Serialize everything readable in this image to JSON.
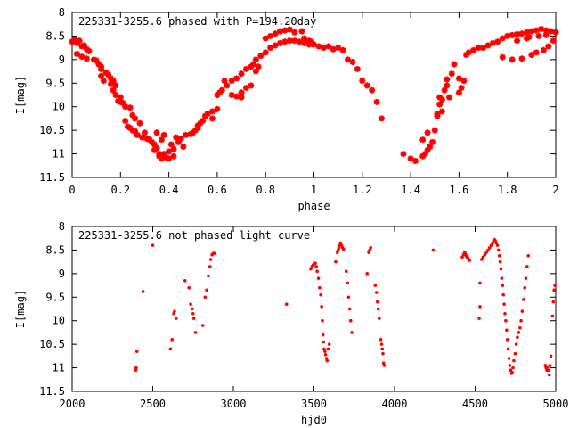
{
  "colors": {
    "points": "#ff0000",
    "axes": "#000000",
    "background": "#ffffff"
  },
  "chart_data": [
    {
      "type": "scatter",
      "title": "225331-3255.6 phased with P=194.20day",
      "xlabel": "phase",
      "ylabel": "I[mag]",
      "xlim": [
        0,
        2
      ],
      "ylim": [
        11.5,
        8
      ],
      "y_inverted": true,
      "grid": false,
      "marker": "plus",
      "xticks": [
        "0",
        "0.2",
        "0.4",
        "0.6",
        "0.8",
        "1",
        "1.2",
        "1.4",
        "1.6",
        "1.8",
        "2"
      ],
      "yticks": [
        "8",
        "8.5",
        "9",
        "9.5",
        "10",
        "10.5",
        "11",
        "11.5"
      ],
      "points": [
        [
          0.0,
          8.62
        ],
        [
          0.01,
          8.58
        ],
        [
          0.02,
          8.65
        ],
        [
          0.03,
          8.6
        ],
        [
          0.04,
          8.72
        ],
        [
          0.05,
          8.7
        ],
        [
          0.06,
          8.78
        ],
        [
          0.07,
          8.82
        ],
        [
          0.02,
          8.88
        ],
        [
          0.04,
          8.94
        ],
        [
          0.06,
          8.98
        ],
        [
          0.09,
          9.0
        ],
        [
          0.1,
          9.02
        ],
        [
          0.11,
          9.1
        ],
        [
          0.12,
          9.35
        ],
        [
          0.13,
          9.45
        ],
        [
          0.12,
          9.2
        ],
        [
          0.14,
          9.28
        ],
        [
          0.15,
          9.32
        ],
        [
          0.16,
          9.4
        ],
        [
          0.17,
          9.45
        ],
        [
          0.18,
          9.55
        ],
        [
          0.12,
          9.15
        ],
        [
          0.16,
          9.52
        ],
        [
          0.17,
          9.65
        ],
        [
          0.18,
          9.75
        ],
        [
          0.2,
          9.8
        ],
        [
          0.2,
          9.9
        ],
        [
          0.21,
          9.92
        ],
        [
          0.22,
          10.0
        ],
        [
          0.19,
          9.88
        ],
        [
          0.24,
          10.02
        ],
        [
          0.22,
          10.3
        ],
        [
          0.23,
          10.42
        ],
        [
          0.24,
          10.45
        ],
        [
          0.25,
          10.5
        ],
        [
          0.26,
          10.52
        ],
        [
          0.27,
          10.6
        ],
        [
          0.25,
          10.18
        ],
        [
          0.26,
          10.25
        ],
        [
          0.28,
          10.35
        ],
        [
          0.29,
          10.65
        ],
        [
          0.3,
          10.55
        ],
        [
          0.31,
          10.68
        ],
        [
          0.32,
          10.7
        ],
        [
          0.33,
          10.75
        ],
        [
          0.34,
          10.8
        ],
        [
          0.34,
          10.92
        ],
        [
          0.35,
          10.88
        ],
        [
          0.36,
          11.0
        ],
        [
          0.36,
          11.05
        ],
        [
          0.37,
          11.1
        ],
        [
          0.38,
          11.0
        ],
        [
          0.39,
          11.08
        ],
        [
          0.4,
          10.95
        ],
        [
          0.41,
          10.8
        ],
        [
          0.42,
          10.9
        ],
        [
          0.42,
          11.05
        ],
        [
          0.43,
          10.65
        ],
        [
          0.44,
          10.75
        ],
        [
          0.45,
          10.68
        ],
        [
          0.46,
          10.85
        ],
        [
          0.35,
          10.55
        ],
        [
          0.37,
          10.7
        ],
        [
          0.38,
          10.6
        ],
        [
          0.4,
          11.1
        ],
        [
          0.47,
          10.6
        ],
        [
          0.49,
          10.58
        ],
        [
          0.5,
          10.55
        ],
        [
          0.51,
          10.5
        ],
        [
          0.52,
          10.4
        ],
        [
          0.53,
          10.35
        ],
        [
          0.52,
          10.45
        ],
        [
          0.54,
          10.3
        ],
        [
          0.55,
          10.2
        ],
        [
          0.56,
          10.15
        ],
        [
          0.58,
          10.1
        ],
        [
          0.6,
          10.05
        ],
        [
          0.58,
          10.25
        ],
        [
          0.6,
          9.75
        ],
        [
          0.61,
          9.7
        ],
        [
          0.62,
          9.65
        ],
        [
          0.63,
          9.45
        ],
        [
          0.64,
          9.55
        ],
        [
          0.66,
          9.45
        ],
        [
          0.68,
          9.4
        ],
        [
          0.7,
          9.3
        ],
        [
          0.72,
          9.2
        ],
        [
          0.74,
          9.15
        ],
        [
          0.75,
          9.1
        ],
        [
          0.76,
          9.0
        ],
        [
          0.78,
          8.92
        ],
        [
          0.8,
          8.85
        ],
        [
          0.82,
          8.75
        ],
        [
          0.84,
          8.7
        ],
        [
          0.86,
          8.65
        ],
        [
          0.88,
          8.62
        ],
        [
          0.9,
          8.6
        ],
        [
          0.92,
          8.6
        ],
        [
          0.94,
          8.62
        ],
        [
          0.96,
          8.65
        ],
        [
          0.98,
          8.68
        ],
        [
          0.76,
          9.25
        ],
        [
          0.77,
          9.15
        ],
        [
          0.8,
          8.55
        ],
        [
          0.82,
          8.5
        ],
        [
          0.84,
          8.45
        ],
        [
          0.86,
          8.4
        ],
        [
          0.88,
          8.38
        ],
        [
          0.9,
          8.36
        ],
        [
          0.92,
          8.42
        ],
        [
          0.95,
          8.4
        ],
        [
          0.96,
          8.55
        ],
        [
          0.98,
          8.6
        ],
        [
          0.99,
          8.62
        ],
        [
          1.0,
          8.68
        ],
        [
          1.02,
          8.72
        ],
        [
          1.04,
          8.75
        ],
        [
          1.06,
          8.72
        ],
        [
          1.08,
          8.78
        ],
        [
          0.66,
          9.75
        ],
        [
          0.68,
          9.78
        ],
        [
          0.7,
          9.7
        ],
        [
          0.72,
          9.6
        ],
        [
          0.74,
          9.55
        ],
        [
          0.7,
          9.8
        ],
        [
          1.1,
          8.75
        ],
        [
          1.12,
          8.8
        ],
        [
          1.14,
          9.0
        ],
        [
          1.16,
          9.05
        ],
        [
          1.18,
          9.2
        ],
        [
          1.2,
          9.45
        ],
        [
          1.22,
          9.55
        ],
        [
          1.24,
          9.65
        ],
        [
          1.26,
          9.9
        ],
        [
          1.28,
          10.25
        ],
        [
          1.37,
          11.0
        ],
        [
          1.4,
          11.1
        ],
        [
          1.42,
          11.15
        ],
        [
          1.45,
          11.05
        ],
        [
          1.46,
          11.0
        ],
        [
          1.47,
          10.92
        ],
        [
          1.48,
          10.85
        ],
        [
          1.49,
          10.75
        ],
        [
          1.5,
          10.5
        ],
        [
          1.51,
          10.2
        ],
        [
          1.52,
          9.95
        ],
        [
          1.53,
          9.85
        ],
        [
          1.54,
          9.65
        ],
        [
          1.55,
          9.42
        ],
        [
          1.57,
          9.3
        ],
        [
          1.58,
          9.1
        ],
        [
          1.6,
          9.7
        ],
        [
          1.61,
          9.6
        ],
        [
          1.62,
          9.45
        ],
        [
          1.64,
          8.85
        ],
        [
          1.66,
          8.8
        ],
        [
          1.68,
          8.75
        ],
        [
          1.7,
          8.75
        ],
        [
          1.72,
          8.7
        ],
        [
          1.74,
          8.65
        ],
        [
          1.76,
          8.62
        ],
        [
          1.78,
          8.55
        ],
        [
          1.8,
          8.5
        ],
        [
          1.82,
          8.48
        ],
        [
          1.84,
          8.46
        ],
        [
          1.86,
          8.45
        ],
        [
          1.88,
          8.42
        ],
        [
          1.9,
          8.4
        ],
        [
          1.92,
          8.38
        ],
        [
          1.94,
          8.35
        ],
        [
          1.96,
          8.38
        ],
        [
          1.98,
          8.4
        ],
        [
          2.0,
          8.42
        ],
        [
          1.78,
          8.95
        ],
        [
          1.82,
          9.0
        ],
        [
          1.86,
          8.98
        ],
        [
          1.9,
          8.9
        ],
        [
          1.92,
          8.85
        ],
        [
          1.95,
          8.8
        ],
        [
          1.97,
          8.72
        ],
        [
          1.99,
          8.6
        ],
        [
          1.88,
          8.55
        ],
        [
          1.93,
          8.5
        ],
        [
          1.96,
          8.48
        ],
        [
          1.51,
          10.15
        ],
        [
          1.53,
          10.1
        ],
        [
          1.55,
          9.55
        ],
        [
          1.52,
          9.8
        ],
        [
          1.56,
          9.8
        ],
        [
          1.6,
          9.4
        ],
        [
          1.63,
          8.9
        ],
        [
          1.84,
          8.6
        ],
        [
          1.89,
          8.52
        ],
        [
          1.45,
          10.7
        ],
        [
          1.47,
          10.55
        ]
      ]
    },
    {
      "type": "scatter",
      "title": "225331-3255.6 not phased light curve",
      "xlabel": "hjd0",
      "ylabel": "I[mag]",
      "xlim": [
        2000,
        5000
      ],
      "ylim": [
        11.5,
        8
      ],
      "y_inverted": true,
      "grid": false,
      "marker": "dot",
      "xticks": [
        "2000",
        "2500",
        "3000",
        "3500",
        "4000",
        "4500",
        "5000"
      ],
      "yticks": [
        "8",
        "8.5",
        "9",
        "9.5",
        "10",
        "10.5",
        "11",
        "11.5"
      ],
      "points": [
        [
          2395,
          11.05
        ],
        [
          2397,
          11.0
        ],
        [
          2402,
          10.65
        ],
        [
          2440,
          9.38
        ],
        [
          2500,
          8.4
        ],
        [
          2610,
          10.6
        ],
        [
          2620,
          10.4
        ],
        [
          2630,
          9.85
        ],
        [
          2635,
          9.8
        ],
        [
          2645,
          9.95
        ],
        [
          2700,
          9.15
        ],
        [
          2725,
          9.3
        ],
        [
          2735,
          9.65
        ],
        [
          2745,
          9.75
        ],
        [
          2750,
          9.85
        ],
        [
          2755,
          9.95
        ],
        [
          2765,
          10.25
        ],
        [
          2810,
          10.1
        ],
        [
          2825,
          9.5
        ],
        [
          2835,
          9.35
        ],
        [
          2845,
          9.05
        ],
        [
          2855,
          8.85
        ],
        [
          2860,
          8.7
        ],
        [
          2868,
          8.6
        ],
        [
          2875,
          8.57
        ],
        [
          2882,
          8.57
        ],
        [
          3330,
          9.65
        ],
        [
          3480,
          8.9
        ],
        [
          3488,
          8.85
        ],
        [
          3495,
          8.82
        ],
        [
          3500,
          8.8
        ],
        [
          3508,
          8.78
        ],
        [
          3515,
          8.85
        ],
        [
          3520,
          8.95
        ],
        [
          3528,
          9.1
        ],
        [
          3535,
          9.3
        ],
        [
          3542,
          9.45
        ],
        [
          3548,
          9.7
        ],
        [
          3552,
          10.0
        ],
        [
          3556,
          10.3
        ],
        [
          3560,
          10.45
        ],
        [
          3563,
          10.6
        ],
        [
          3568,
          10.65
        ],
        [
          3572,
          10.72
        ],
        [
          3578,
          10.8
        ],
        [
          3582,
          10.85
        ],
        [
          3588,
          10.6
        ],
        [
          3595,
          10.5
        ],
        [
          3635,
          8.75
        ],
        [
          3645,
          8.55
        ],
        [
          3650,
          8.5
        ],
        [
          3655,
          8.45
        ],
        [
          3660,
          8.4
        ],
        [
          3665,
          8.35
        ],
        [
          3672,
          8.4
        ],
        [
          3678,
          8.45
        ],
        [
          3684,
          8.48
        ],
        [
          3700,
          8.95
        ],
        [
          3708,
          9.2
        ],
        [
          3715,
          9.5
        ],
        [
          3722,
          9.75
        ],
        [
          3728,
          10.0
        ],
        [
          3735,
          10.25
        ],
        [
          3830,
          9.0
        ],
        [
          3840,
          8.55
        ],
        [
          3846,
          8.5
        ],
        [
          3852,
          8.45
        ],
        [
          3880,
          9.25
        ],
        [
          3888,
          9.4
        ],
        [
          3894,
          9.6
        ],
        [
          3898,
          9.75
        ],
        [
          3905,
          9.95
        ],
        [
          3915,
          10.4
        ],
        [
          3920,
          10.5
        ],
        [
          3924,
          10.6
        ],
        [
          3928,
          10.7
        ],
        [
          3932,
          10.9
        ],
        [
          3936,
          10.95
        ],
        [
          4240,
          8.5
        ],
        [
          4420,
          8.65
        ],
        [
          4428,
          8.6
        ],
        [
          4435,
          8.55
        ],
        [
          4440,
          8.58
        ],
        [
          4445,
          8.62
        ],
        [
          4450,
          8.65
        ],
        [
          4455,
          8.66
        ],
        [
          4460,
          8.7
        ],
        [
          4465,
          8.72
        ],
        [
          4530,
          9.2
        ],
        [
          4540,
          8.7
        ],
        [
          4550,
          8.65
        ],
        [
          4560,
          8.6
        ],
        [
          4570,
          8.55
        ],
        [
          4580,
          8.5
        ],
        [
          4590,
          8.45
        ],
        [
          4600,
          8.4
        ],
        [
          4608,
          8.35
        ],
        [
          4615,
          8.3
        ],
        [
          4620,
          8.28
        ],
        [
          4625,
          8.3
        ],
        [
          4632,
          8.35
        ],
        [
          4638,
          8.4
        ],
        [
          4645,
          8.5
        ],
        [
          4650,
          8.62
        ],
        [
          4655,
          8.75
        ],
        [
          4660,
          8.9
        ],
        [
          4665,
          9.1
        ],
        [
          4670,
          9.25
        ],
        [
          4675,
          9.45
        ],
        [
          4680,
          9.65
        ],
        [
          4685,
          9.85
        ],
        [
          4690,
          10.0
        ],
        [
          4695,
          10.2
        ],
        [
          4700,
          10.4
        ],
        [
          4705,
          10.6
        ],
        [
          4710,
          10.8
        ],
        [
          4715,
          10.95
        ],
        [
          4720,
          11.05
        ],
        [
          4725,
          11.12
        ],
        [
          4730,
          11.1
        ],
        [
          4735,
          11.0
        ],
        [
          4740,
          10.85
        ],
        [
          4748,
          10.7
        ],
        [
          4755,
          10.5
        ],
        [
          4762,
          10.35
        ],
        [
          4770,
          10.25
        ],
        [
          4778,
          10.15
        ],
        [
          4785,
          10.0
        ],
        [
          4792,
          9.8
        ],
        [
          4800,
          9.55
        ],
        [
          4808,
          9.3
        ],
        [
          4815,
          9.1
        ],
        [
          4822,
          8.85
        ],
        [
          4830,
          8.62
        ],
        [
          4530,
          9.7
        ],
        [
          4525,
          9.95
        ],
        [
          4935,
          10.95
        ],
        [
          4940,
          11.0
        ],
        [
          4945,
          11.05
        ],
        [
          4950,
          10.98
        ],
        [
          4955,
          11.05
        ],
        [
          4960,
          11.15
        ],
        [
          4965,
          10.95
        ],
        [
          4970,
          10.75
        ],
        [
          4980,
          9.9
        ],
        [
          4985,
          9.6
        ],
        [
          4990,
          9.35
        ],
        [
          4995,
          9.25
        ]
      ]
    }
  ]
}
